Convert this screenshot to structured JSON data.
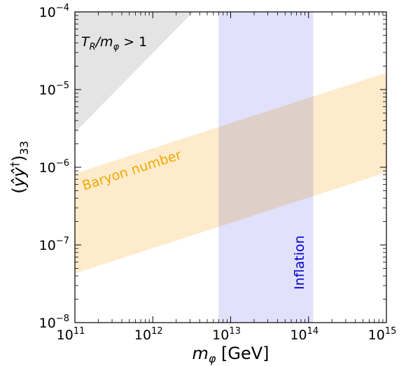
{
  "chart_data": {
    "type": "area",
    "x_scale": "log",
    "y_scale": "log",
    "xlim": [
      100000000000.0,
      1000000000000000.0
    ],
    "ylim": [
      1e-08,
      0.0001
    ],
    "xlabel": "m_φ [GeV]",
    "ylabel": "(ŷŷ†)33",
    "x_ticks": [
      {
        "base": "10",
        "exp": "11",
        "value": 100000000000.0
      },
      {
        "base": "10",
        "exp": "12",
        "value": 1000000000000.0
      },
      {
        "base": "10",
        "exp": "13",
        "value": 10000000000000.0
      },
      {
        "base": "10",
        "exp": "14",
        "value": 100000000000000.0
      },
      {
        "base": "10",
        "exp": "15",
        "value": 1000000000000000.0
      }
    ],
    "y_ticks": [
      {
        "base": "10",
        "exp": "−8",
        "value": 1e-08
      },
      {
        "base": "10",
        "exp": "−7",
        "value": 1e-07
      },
      {
        "base": "10",
        "exp": "−6",
        "value": 1e-06
      },
      {
        "base": "10",
        "exp": "−5",
        "value": 1e-05
      },
      {
        "base": "10",
        "exp": "−4",
        "value": 0.0001
      }
    ],
    "grid": false,
    "regions": [
      {
        "label": "T_R/m_φ > 1",
        "color": "#e4e4e4",
        "label_color": "#000000",
        "polygon": [
          [
            100000000000.0,
            2.8e-06
          ],
          [
            100000000000.0,
            0.0001
          ],
          [
            3300000000000.0,
            0.0001
          ]
        ]
      },
      {
        "label": "Baryon number",
        "color": "#fde7c3",
        "label_color": "#f5a800",
        "polygon": [
          [
            100000000000.0,
            4.3e-08
          ],
          [
            1000000000000000.0,
            8.6e-07
          ],
          [
            1000000000000000.0,
            1.65e-05
          ],
          [
            100000000000.0,
            8.3e-07
          ]
        ]
      },
      {
        "label": "Inflation",
        "color": "#c8c8f8",
        "label_color": "#0000cc",
        "x_range": [
          7000000000000.0,
          115000000000000.0
        ]
      }
    ]
  }
}
